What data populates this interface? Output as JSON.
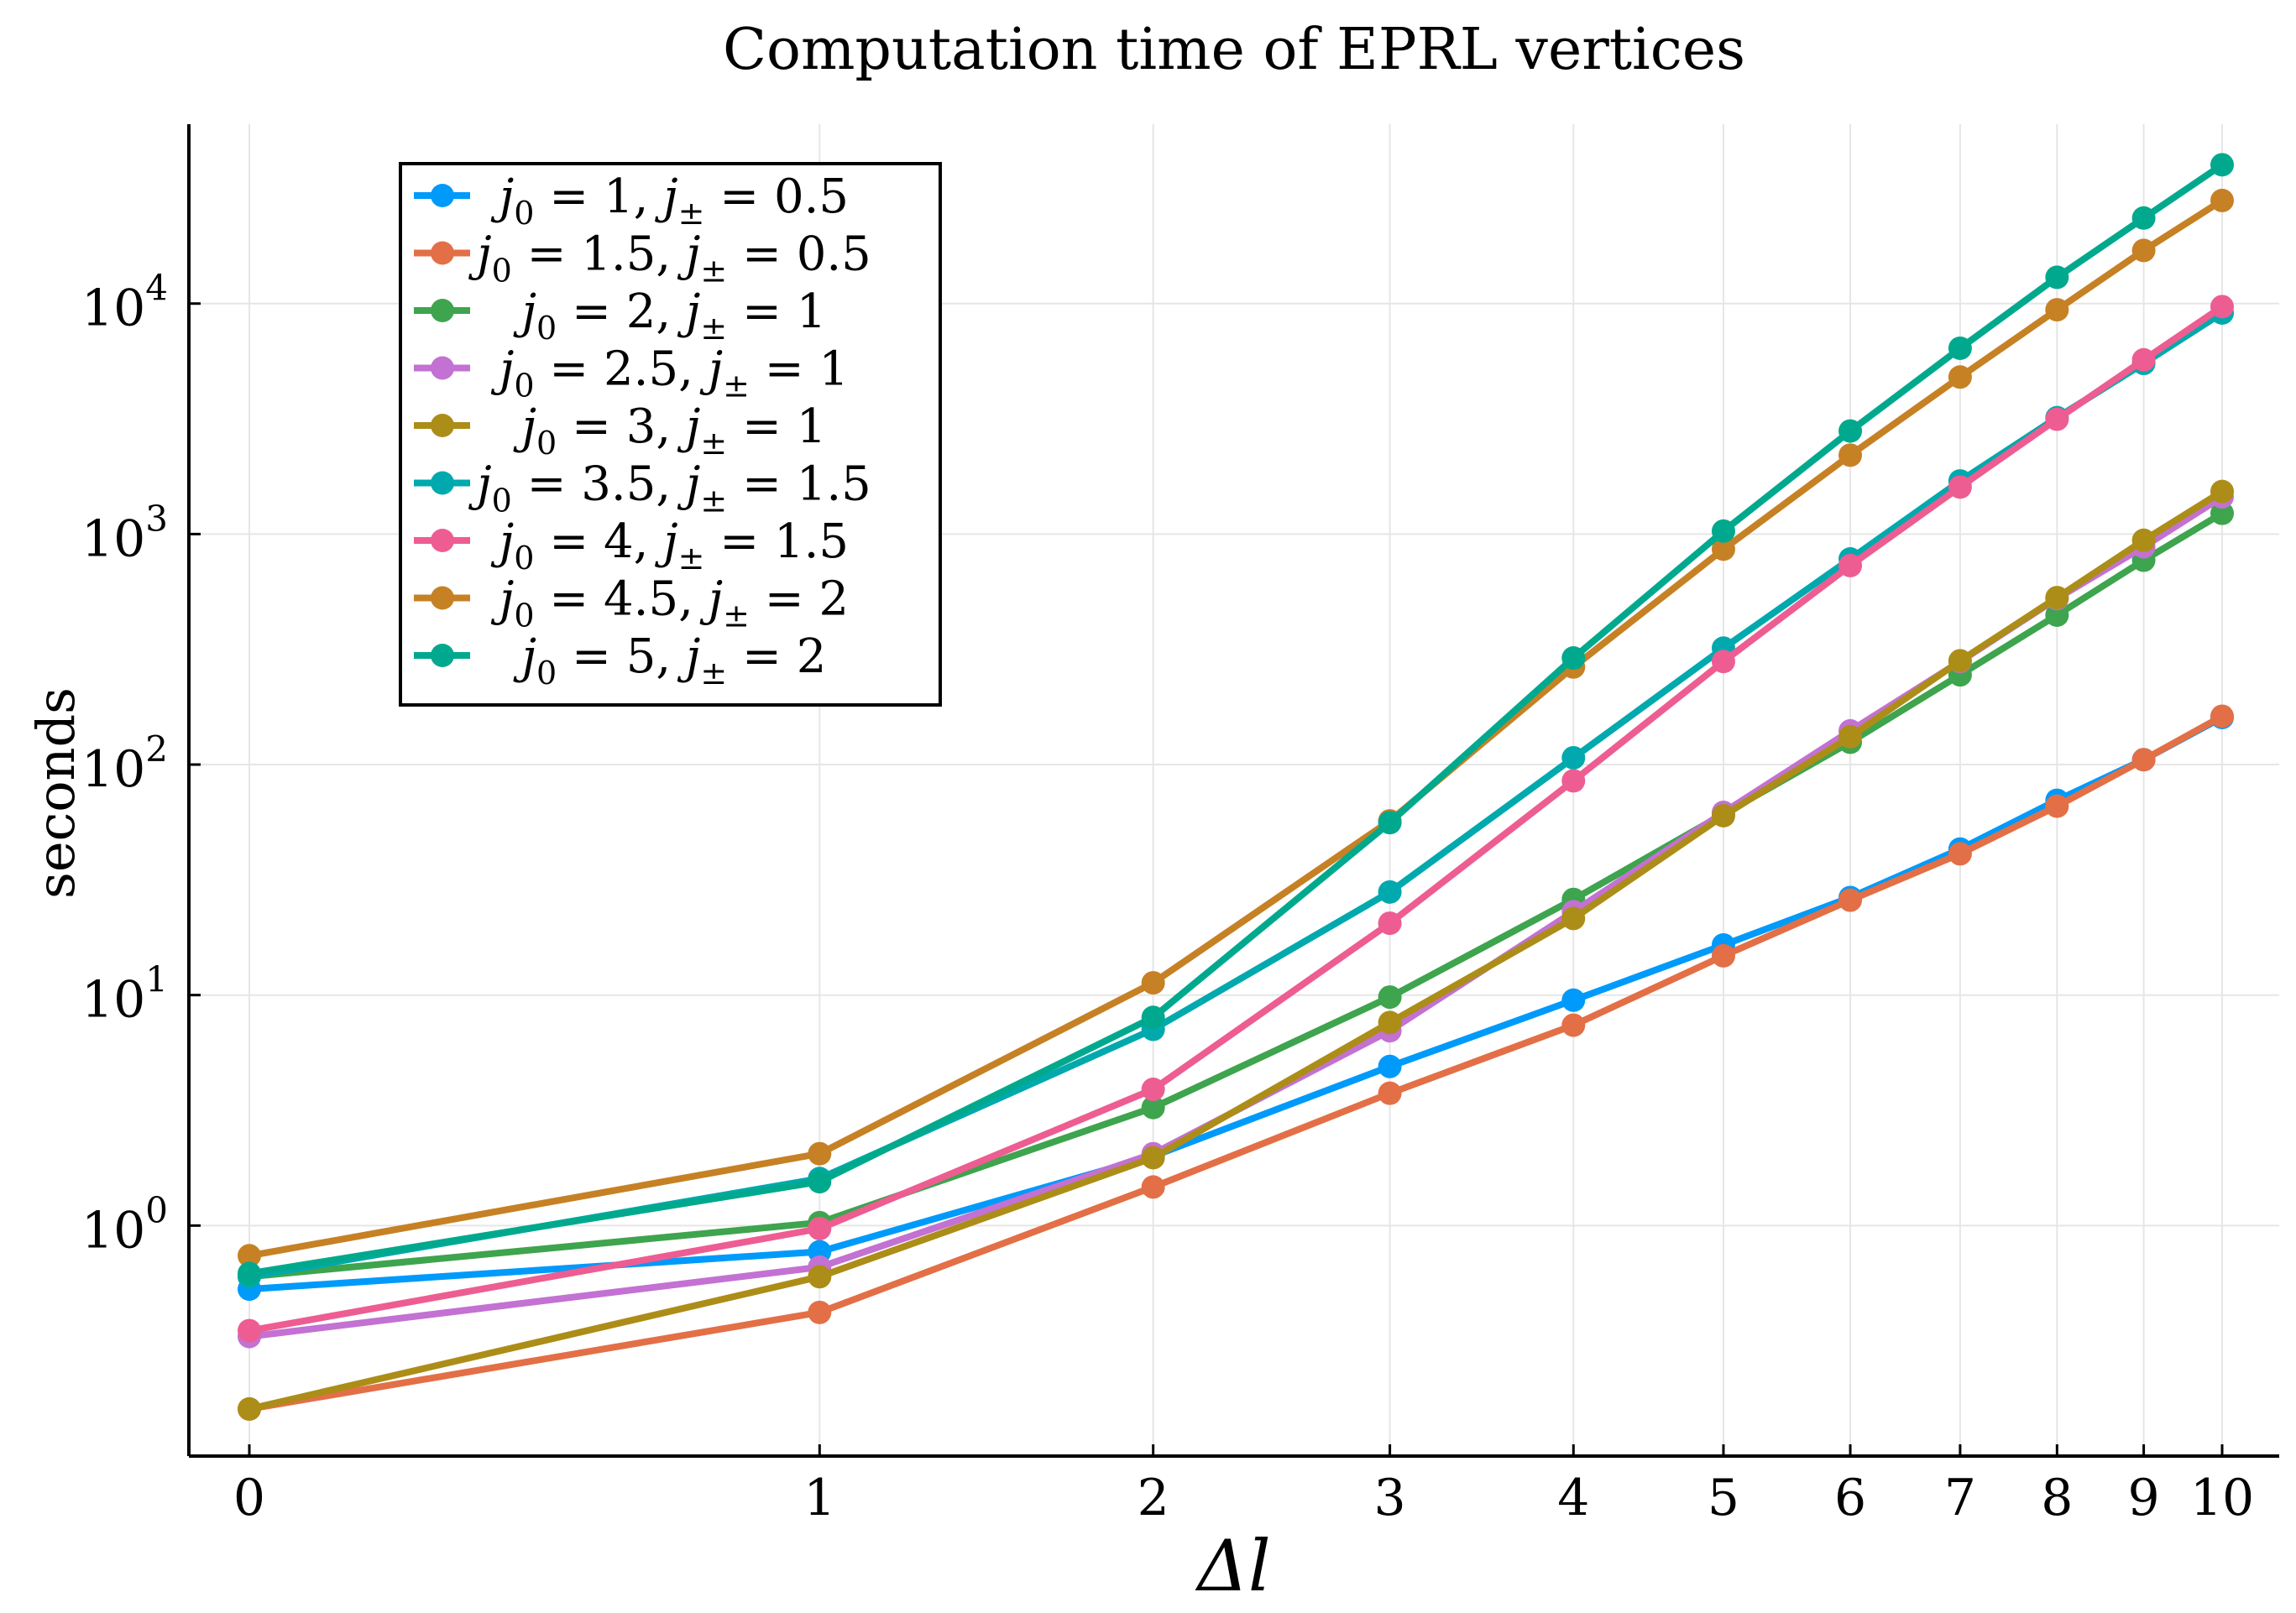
{
  "chart_data": {
    "type": "line",
    "title": "Computation time of EPRL vertices",
    "xlabel": "Δl",
    "ylabel": "seconds",
    "yscale": "log",
    "ylim": [
      0.1,
      60000
    ],
    "x_ticks": [
      0,
      1,
      2,
      3,
      4,
      5,
      6,
      7,
      8,
      9,
      10
    ],
    "x_tick_labels": [
      "0",
      "1",
      "2",
      "3",
      "4",
      "5",
      "6",
      "7",
      "8",
      "9",
      "10"
    ],
    "y_ticks": [
      1,
      10,
      100,
      1000,
      10000
    ],
    "y_tick_labels": [
      {
        "base": "10",
        "exp": "0"
      },
      {
        "base": "10",
        "exp": "1"
      },
      {
        "base": "10",
        "exp": "2"
      },
      {
        "base": "10",
        "exp": "3"
      },
      {
        "base": "10",
        "exp": "4"
      }
    ],
    "x": [
      0,
      1,
      2,
      3,
      4,
      5,
      6,
      7,
      8,
      9,
      10
    ],
    "legend_position": "top-left",
    "series": [
      {
        "name": "j₀ = 1, j± = 0.5",
        "color": "#009AFA",
        "values": [
          0.53,
          0.77,
          2.0,
          4.9,
          9.5,
          16.5,
          26.5,
          43,
          70,
          105,
          160
        ]
      },
      {
        "name": "j₀ = 1.5, j± = 0.5",
        "color": "#E36F47",
        "values": [
          0.16,
          0.42,
          1.47,
          3.75,
          7.4,
          14.8,
          25.8,
          41,
          66,
          105,
          162
        ]
      },
      {
        "name": "j₀ = 2, j± = 1",
        "color": "#3EA44E",
        "values": [
          0.6,
          1.03,
          3.25,
          9.8,
          26,
          61,
          125,
          245,
          445,
          770,
          1230
        ]
      },
      {
        "name": "j₀ = 2.5, j± = 1",
        "color": "#C371D2",
        "values": [
          0.33,
          0.66,
          2.05,
          7.0,
          23,
          62,
          140,
          280,
          525,
          880,
          1450
        ]
      },
      {
        "name": "j₀ = 3, j± = 1",
        "color": "#AC8D18",
        "values": [
          0.16,
          0.6,
          1.97,
          7.6,
          21.5,
          60,
          132,
          282,
          530,
          940,
          1530
        ]
      },
      {
        "name": "j₀ = 3.5, j± = 1.5",
        "color": "#00A9AD",
        "values": [
          0.6,
          1.6,
          7.1,
          28,
          107,
          320,
          780,
          1700,
          3200,
          5500,
          9100
        ]
      },
      {
        "name": "j₀ = 4, j± = 1.5",
        "color": "#ED5D92",
        "values": [
          0.35,
          0.97,
          3.9,
          20.5,
          85,
          280,
          730,
          1600,
          3150,
          5700,
          9700
        ]
      },
      {
        "name": "j₀ = 4.5, j± = 2",
        "color": "#C68125",
        "values": [
          0.74,
          2.05,
          11.3,
          57,
          265,
          860,
          2200,
          4800,
          9400,
          17000,
          28000
        ]
      },
      {
        "name": "j₀ = 5, j± = 2",
        "color": "#00A98D",
        "values": [
          0.62,
          1.55,
          8.0,
          56,
          290,
          1030,
          2800,
          6400,
          13000,
          23500,
          40000
        ]
      }
    ],
    "legend_labels": [
      {
        "base": "j",
        "sub": "0",
        "mid": " = 1, ",
        "base2": "j",
        "sub2": "±",
        "end": " = 0.5"
      },
      {
        "base": "j",
        "sub": "0",
        "mid": " = 1.5, ",
        "base2": "j",
        "sub2": "±",
        "end": " = 0.5"
      },
      {
        "base": "j",
        "sub": "0",
        "mid": " = 2, ",
        "base2": "j",
        "sub2": "±",
        "end": " = 1"
      },
      {
        "base": "j",
        "sub": "0",
        "mid": " = 2.5, ",
        "base2": "j",
        "sub2": "±",
        "end": " = 1"
      },
      {
        "base": "j",
        "sub": "0",
        "mid": " = 3, ",
        "base2": "j",
        "sub2": "±",
        "end": " = 1"
      },
      {
        "base": "j",
        "sub": "0",
        "mid": " = 3.5, ",
        "base2": "j",
        "sub2": "±",
        "end": " = 1.5"
      },
      {
        "base": "j",
        "sub": "0",
        "mid": " = 4, ",
        "base2": "j",
        "sub2": "±",
        "end": " = 1.5"
      },
      {
        "base": "j",
        "sub": "0",
        "mid": " = 4.5, ",
        "base2": "j",
        "sub2": "±",
        "end": " = 2"
      },
      {
        "base": "j",
        "sub": "0",
        "mid": " = 5, ",
        "base2": "j",
        "sub2": "±",
        "end": " = 2"
      }
    ]
  }
}
